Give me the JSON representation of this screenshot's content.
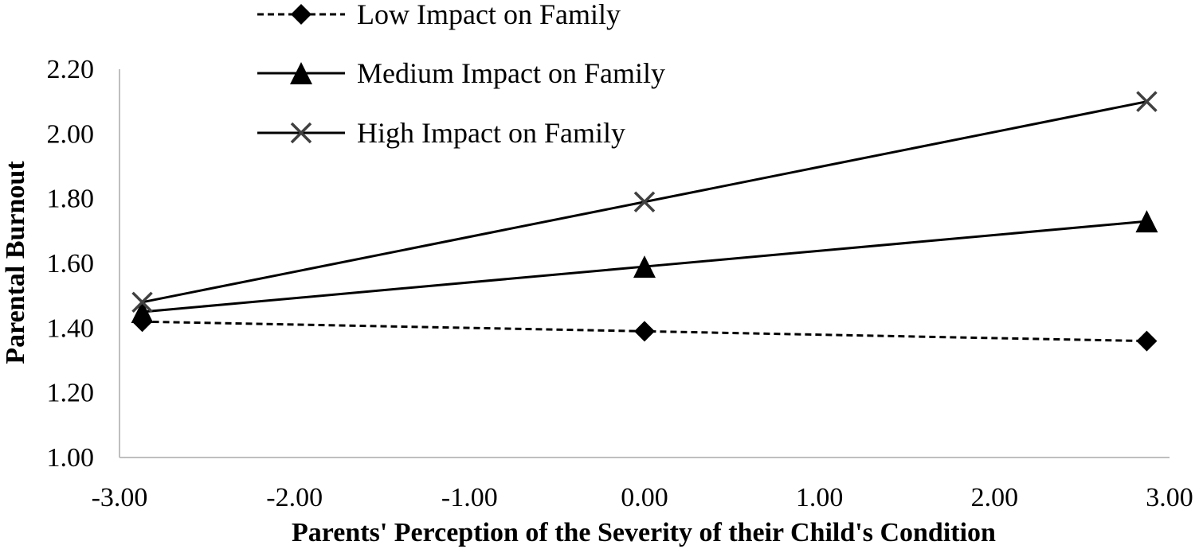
{
  "chart_data": {
    "type": "line",
    "xlabel": "Parents' Perception of the Severity of their Child's Condition",
    "ylabel": "Parental Burnout",
    "xlim": [
      -3.0,
      3.0
    ],
    "ylim": [
      1.0,
      2.2
    ],
    "x_ticks": [
      "-3.00",
      "-2.00",
      "-1.00",
      "0.00",
      "1.00",
      "2.00",
      "3.00"
    ],
    "y_ticks": [
      "1.00",
      "1.20",
      "1.40",
      "1.60",
      "1.80",
      "2.00",
      "2.20"
    ],
    "grid": false,
    "legend_position": "top",
    "x": [
      -2.87,
      0.0,
      2.87
    ],
    "series": [
      {
        "name": "Low Impact on Family",
        "values": [
          1.42,
          1.39,
          1.36
        ],
        "marker": "diamond",
        "line": "dashed",
        "color": "#000000"
      },
      {
        "name": "Medium Impact on Family",
        "values": [
          1.45,
          1.59,
          1.73
        ],
        "marker": "triangle",
        "line": "solid",
        "color": "#000000"
      },
      {
        "name": "High Impact on Family",
        "values": [
          1.48,
          1.79,
          2.1
        ],
        "marker": "x",
        "line": "solid",
        "color": "#000000"
      }
    ]
  }
}
